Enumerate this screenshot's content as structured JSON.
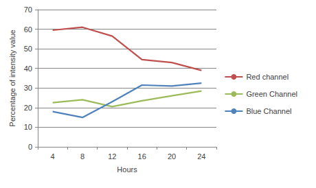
{
  "chart_data": {
    "type": "line",
    "x_label": "Hours",
    "y_label": "Percentage of intensity value",
    "categories": [
      4,
      8,
      12,
      16,
      20,
      24
    ],
    "series": [
      {
        "name": "Red channel",
        "color": "#c0504d",
        "values": [
          59.5,
          61,
          56.5,
          44.5,
          43,
          39
        ]
      },
      {
        "name": "Green Channel",
        "color": "#9bbb59",
        "values": [
          22.5,
          24,
          20.5,
          23.5,
          26,
          28.5
        ]
      },
      {
        "name": "Blue Channel",
        "color": "#4f81bd",
        "values": [
          18,
          15,
          23,
          31.5,
          31,
          32.5
        ]
      }
    ],
    "ylim": [
      0,
      70
    ],
    "yticks": [
      0,
      10,
      20,
      30,
      40,
      50,
      60,
      70
    ],
    "grid": true,
    "legend": "right"
  }
}
